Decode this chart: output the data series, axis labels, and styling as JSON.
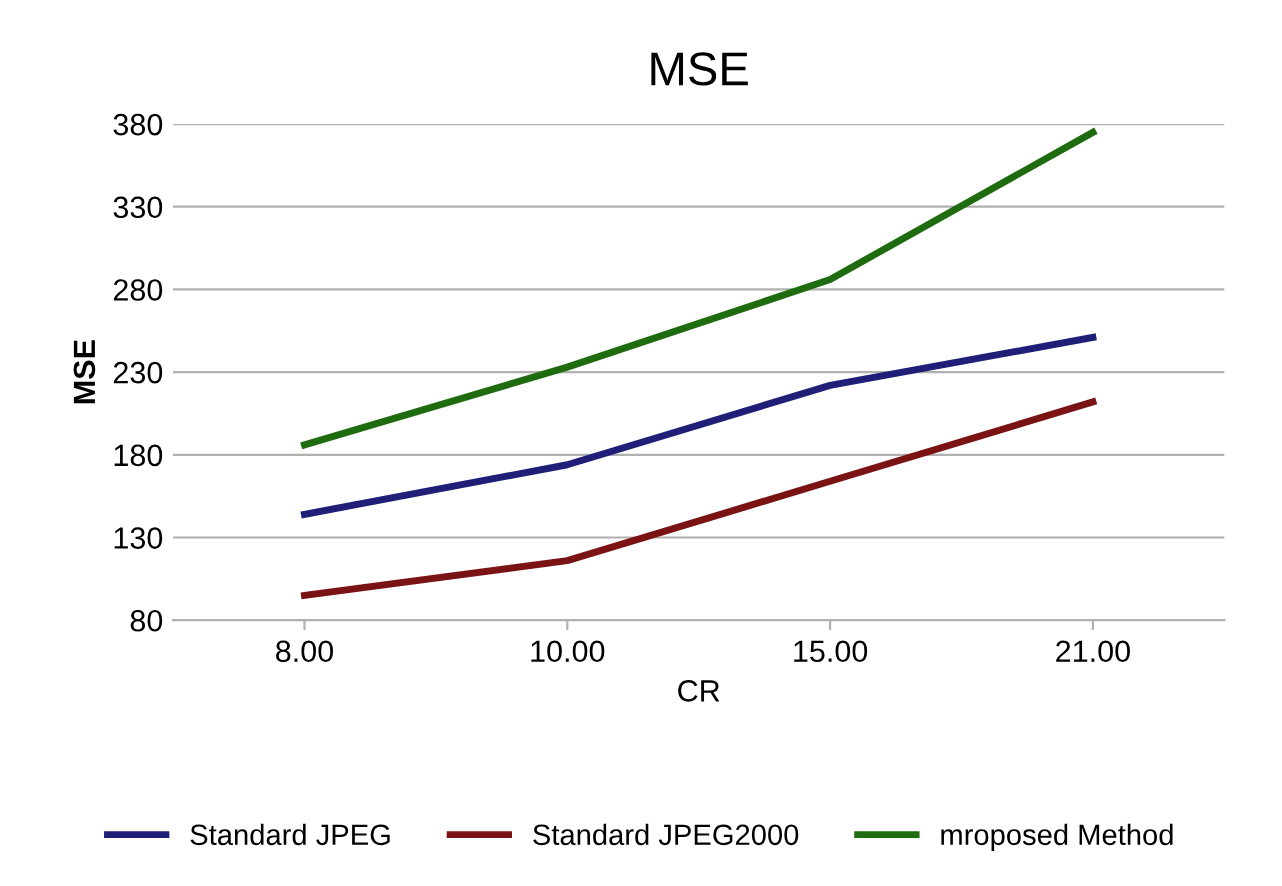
{
  "chart_data": {
    "type": "line",
    "title": "MSE",
    "xlabel": "CR",
    "ylabel": "MSE",
    "categories": [
      "8.00",
      "10.00",
      "15.00",
      "21.00"
    ],
    "series": [
      {
        "name": "Standard JPEG",
        "color": "#1f1f78",
        "values": [
          144,
          174,
          222,
          251
        ]
      },
      {
        "name": "Standard JPEG2000",
        "color": "#7a1414",
        "values": [
          95,
          116,
          164,
          212
        ]
      },
      {
        "name": "mroposed Method",
        "color": "#1f6b0f",
        "values": [
          186,
          233,
          286,
          375
        ]
      }
    ],
    "ylim": [
      80,
      380
    ],
    "yticks": [
      80,
      130,
      180,
      230,
      280,
      330,
      380
    ],
    "grid": "y",
    "legend": "bottom",
    "marker": "none",
    "line_style": "solid"
  }
}
